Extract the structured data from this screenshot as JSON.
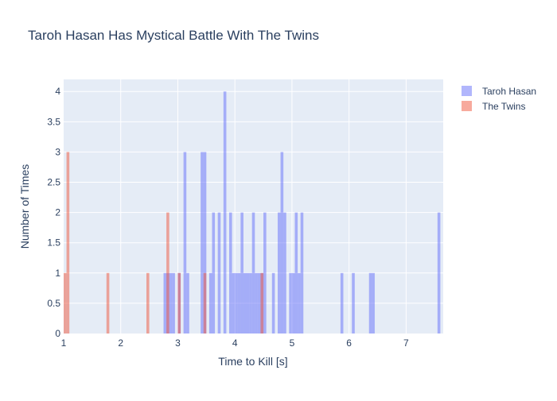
{
  "chart_data": {
    "type": "histogram",
    "title": "Taroh Hasan Has Mystical Battle With The Twins",
    "xlabel": "Time to Kill [s]",
    "ylabel": "Number of Times",
    "xlim": [
      1,
      7.65
    ],
    "ylim": [
      0,
      4.2
    ],
    "x_ticks": [
      1,
      2,
      3,
      4,
      5,
      6,
      7
    ],
    "y_ticks": [
      0,
      0.5,
      1,
      1.5,
      2,
      2.5,
      3,
      3.5,
      4
    ],
    "bin_width": 0.05,
    "barmode": "overlay",
    "grid": true,
    "legend_position": "top-right",
    "series": [
      {
        "name": "Taroh Hasan",
        "color": "#636efa",
        "opacity": 0.5,
        "bins": [
          [
            2.75,
            1
          ],
          [
            2.8,
            1
          ],
          [
            2.85,
            1
          ],
          [
            2.9,
            1
          ],
          [
            3.0,
            1
          ],
          [
            3.1,
            3
          ],
          [
            3.15,
            1
          ],
          [
            3.4,
            3
          ],
          [
            3.45,
            3
          ],
          [
            3.55,
            1
          ],
          [
            3.6,
            2
          ],
          [
            3.7,
            2
          ],
          [
            3.8,
            4
          ],
          [
            3.9,
            2
          ],
          [
            3.95,
            1
          ],
          [
            4.0,
            1
          ],
          [
            4.05,
            1
          ],
          [
            4.1,
            2
          ],
          [
            4.15,
            1
          ],
          [
            4.2,
            1
          ],
          [
            4.25,
            1
          ],
          [
            4.3,
            2
          ],
          [
            4.35,
            1
          ],
          [
            4.4,
            1
          ],
          [
            4.45,
            1
          ],
          [
            4.5,
            2
          ],
          [
            4.65,
            1
          ],
          [
            4.75,
            2
          ],
          [
            4.8,
            3
          ],
          [
            4.85,
            2
          ],
          [
            4.95,
            1
          ],
          [
            5.0,
            1
          ],
          [
            5.05,
            2
          ],
          [
            5.1,
            1
          ],
          [
            5.15,
            2
          ],
          [
            5.85,
            1
          ],
          [
            6.05,
            1
          ],
          [
            6.35,
            1
          ],
          [
            6.4,
            1
          ],
          [
            7.55,
            2
          ],
          [
            7.65,
            1
          ]
        ]
      },
      {
        "name": "The Twins",
        "color": "#ef553b",
        "opacity": 0.5,
        "bins": [
          [
            1.0,
            1
          ],
          [
            1.05,
            3
          ],
          [
            1.75,
            1
          ],
          [
            2.45,
            1
          ],
          [
            2.8,
            2
          ],
          [
            3.0,
            1
          ],
          [
            3.45,
            1
          ],
          [
            4.45,
            1
          ]
        ]
      }
    ]
  }
}
